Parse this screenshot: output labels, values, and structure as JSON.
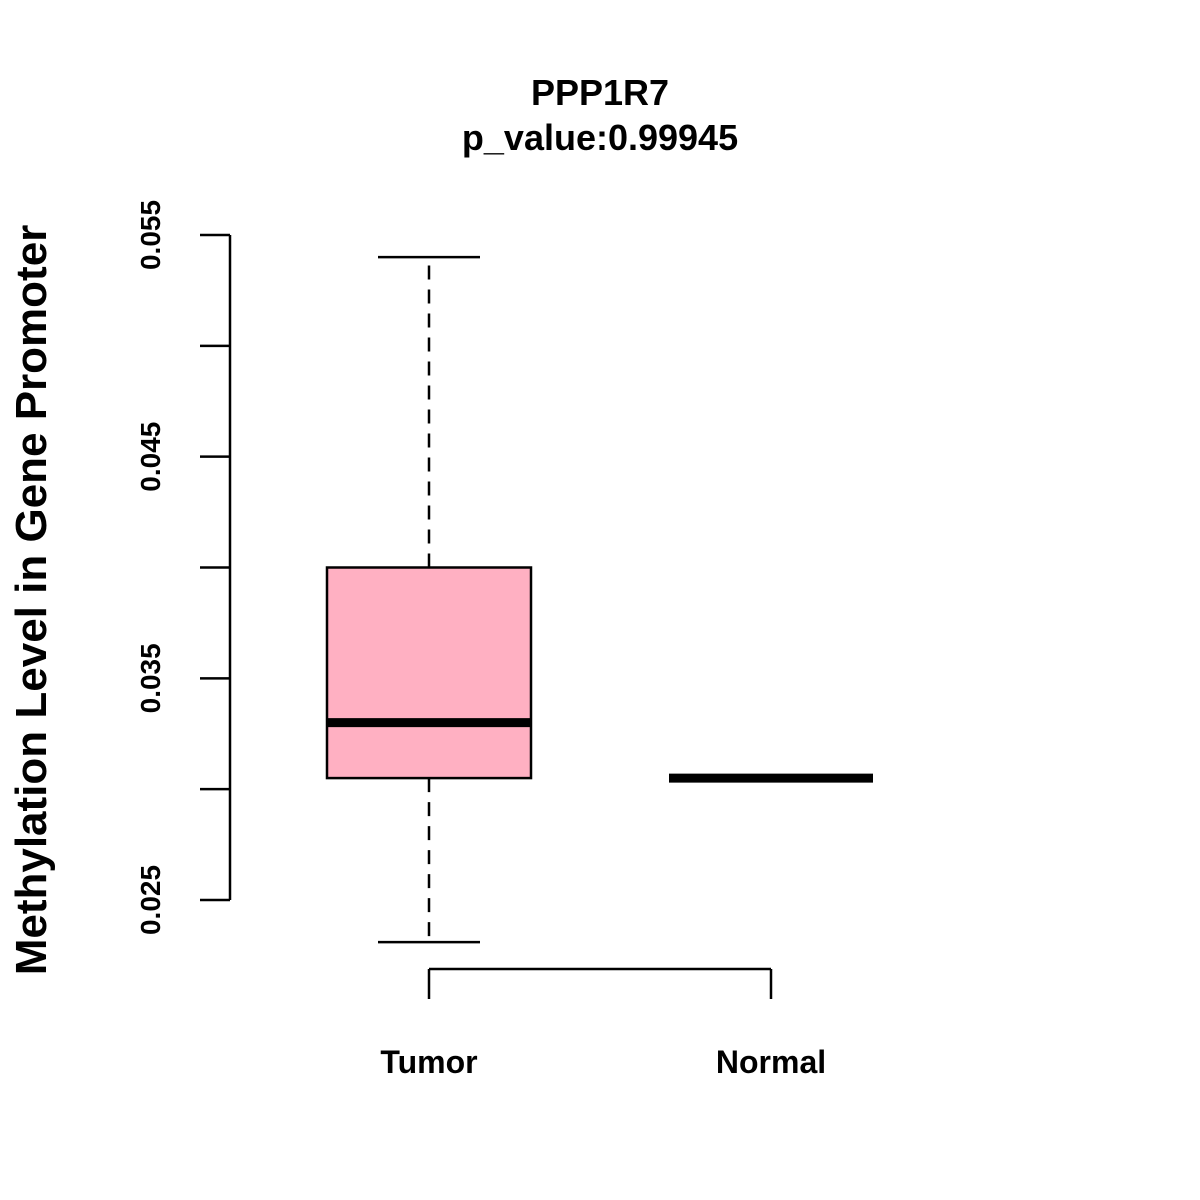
{
  "chart_data": {
    "type": "box",
    "title": "PPP1R7",
    "subtitle": "p_value:0.99945",
    "ylabel": "Methylation Level in Gene Promoter",
    "xlabel": "",
    "ylim": [
      0.025,
      0.055
    ],
    "yticks": [
      0.025,
      0.03,
      0.035,
      0.04,
      0.045,
      0.05,
      0.055
    ],
    "ytick_labels": [
      "0.025",
      "",
      "0.035",
      "",
      "0.045",
      "",
      "0.055"
    ],
    "categories": [
      "Tumor",
      "Normal"
    ],
    "series": [
      {
        "category": "Tumor",
        "min": 0.0231,
        "q1": 0.0305,
        "median": 0.033,
        "q3": 0.04,
        "max": 0.054,
        "fill": "#FFB0C2"
      },
      {
        "category": "Normal",
        "min": 0.0305,
        "q1": 0.0305,
        "median": 0.0305,
        "q3": 0.0305,
        "max": 0.0305,
        "fill": "#FFB0C2"
      }
    ],
    "grid": false,
    "legend": "none"
  }
}
